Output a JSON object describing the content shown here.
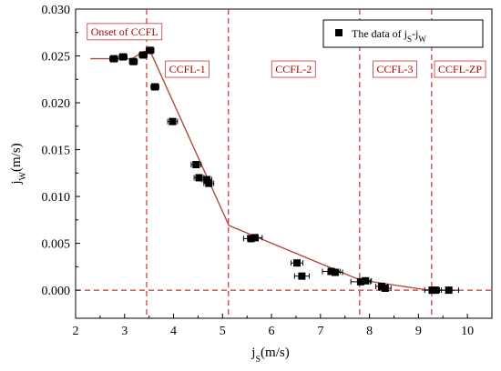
{
  "chart_data": {
    "type": "scatter",
    "title": "",
    "xlabel": "j",
    "xlabel_sub": "S",
    "xlabel_unit": "(m/s)",
    "ylabel": "j",
    "ylabel_sub": "W",
    "ylabel_unit": "(m/s)",
    "xlim": [
      2,
      10.5
    ],
    "ylim": [
      -0.003,
      0.03
    ],
    "xticks": [
      "2",
      "3",
      "4",
      "5",
      "6",
      "7",
      "8",
      "9",
      "10"
    ],
    "xtick_values": [
      2,
      3,
      4,
      5,
      6,
      7,
      8,
      9,
      10
    ],
    "yticks": [
      "0.000",
      "0.005",
      "0.010",
      "0.015",
      "0.020",
      "0.025",
      "0.030"
    ],
    "ytick_values": [
      0,
      0.005,
      0.01,
      0.015,
      0.02,
      0.025,
      0.03
    ],
    "legend": {
      "position": "top-right",
      "label_main": "The data of j",
      "label_sub1": "S",
      "label_mid": "-j",
      "label_sub2": "W"
    },
    "series": [
      {
        "marker": "square",
        "color": "#000000",
        "points": [
          {
            "x": 2.78,
            "y": 0.0247,
            "xerr": 0.08
          },
          {
            "x": 2.97,
            "y": 0.0249,
            "xerr": 0.08
          },
          {
            "x": 3.18,
            "y": 0.0244,
            "xerr": 0.08
          },
          {
            "x": 3.38,
            "y": 0.0251,
            "xerr": 0.08
          },
          {
            "x": 3.52,
            "y": 0.0256,
            "xerr": 0.08
          },
          {
            "x": 3.62,
            "y": 0.0217,
            "xerr": 0.08
          },
          {
            "x": 3.98,
            "y": 0.018,
            "xerr": 0.1
          },
          {
            "x": 4.46,
            "y": 0.0134,
            "xerr": 0.1
          },
          {
            "x": 4.52,
            "y": 0.012,
            "xerr": 0.1
          },
          {
            "x": 4.68,
            "y": 0.0118,
            "xerr": 0.1
          },
          {
            "x": 4.72,
            "y": 0.0114,
            "xerr": 0.1
          },
          {
            "x": 5.58,
            "y": 0.0055,
            "xerr": 0.15
          },
          {
            "x": 5.66,
            "y": 0.0056,
            "xerr": 0.15
          },
          {
            "x": 6.52,
            "y": 0.0029,
            "xerr": 0.12
          },
          {
            "x": 6.62,
            "y": 0.0015,
            "xerr": 0.15
          },
          {
            "x": 7.22,
            "y": 0.002,
            "xerr": 0.18
          },
          {
            "x": 7.3,
            "y": 0.0019,
            "xerr": 0.15
          },
          {
            "x": 7.82,
            "y": 0.0009,
            "xerr": 0.2
          },
          {
            "x": 7.92,
            "y": 0.001,
            "xerr": 0.12
          },
          {
            "x": 8.25,
            "y": 0.0004,
            "xerr": 0.12
          },
          {
            "x": 8.32,
            "y": 0.0002,
            "xerr": 0.12
          },
          {
            "x": 9.28,
            "y": 0.0,
            "xerr": 0.15
          },
          {
            "x": 9.35,
            "y": 0.0,
            "xerr": 0.12
          },
          {
            "x": 9.62,
            "y": 0.0,
            "xerr": 0.2
          }
        ]
      }
    ],
    "fit_line": {
      "color": "#b04a3a",
      "points": [
        {
          "x": 2.3,
          "y": 0.0247
        },
        {
          "x": 3.15,
          "y": 0.0247
        },
        {
          "x": 3.4,
          "y": 0.0255
        },
        {
          "x": 3.55,
          "y": 0.0252
        },
        {
          "x": 5.13,
          "y": 0.0069
        },
        {
          "x": 7.8,
          "y": 0.0011
        },
        {
          "x": 9.2,
          "y": 0.0
        }
      ]
    },
    "zero_line": {
      "y": 0,
      "color": "#cc3333"
    },
    "regions": [
      {
        "label": "Onset of CCFL",
        "boundary_x": 3.45,
        "label_x": 3.0,
        "label_y": 0.0272
      },
      {
        "label": "CCFL-1",
        "boundary_x": 5.12,
        "label_x": 4.28,
        "label_y": 0.0232
      },
      {
        "label": "CCFL-2",
        "boundary_x": 7.8,
        "label_x": 6.45,
        "label_y": 0.0232
      },
      {
        "label": "CCFL-3",
        "boundary_x": 9.27,
        "label_x": 8.52,
        "label_y": 0.0232
      },
      {
        "label": "CCFL-ZP",
        "boundary_x": null,
        "label_x": 9.85,
        "label_y": 0.0232
      }
    ],
    "region_color": "#cc3333",
    "grid": false
  }
}
